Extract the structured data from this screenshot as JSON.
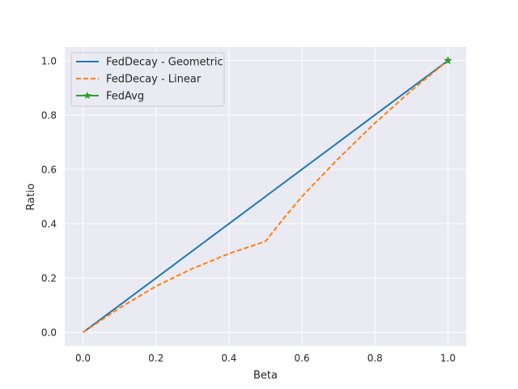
{
  "chart_data": {
    "type": "line",
    "title": "",
    "xlabel": "Beta",
    "ylabel": "Ratio",
    "xlim": [
      -0.05,
      1.05
    ],
    "ylim": [
      -0.05,
      1.05
    ],
    "xticks": [
      0.0,
      0.2,
      0.4,
      0.6,
      0.8,
      1.0
    ],
    "yticks": [
      0.0,
      0.2,
      0.4,
      0.6,
      0.8,
      1.0
    ],
    "xtick_labels": [
      "0.0",
      "0.2",
      "0.4",
      "0.6",
      "0.8",
      "1.0"
    ],
    "ytick_labels": [
      "0.0",
      "0.2",
      "0.4",
      "0.6",
      "0.8",
      "1.0"
    ],
    "grid": true,
    "background": "#eaeaf2",
    "legend_position": "top-left",
    "series": [
      {
        "name": "FedDecay - Geometric",
        "color": "#1f77b4",
        "style": "solid",
        "marker": "none",
        "x": [
          0.0,
          0.1,
          0.2,
          0.3,
          0.4,
          0.5,
          0.6,
          0.7,
          0.8,
          0.9,
          1.0
        ],
        "y": [
          0.0,
          0.1,
          0.2,
          0.3,
          0.4,
          0.5,
          0.6,
          0.7,
          0.8,
          0.9,
          1.0
        ]
      },
      {
        "name": "FedDecay - Linear",
        "color": "#ff7f0e",
        "style": "dashed",
        "marker": "none",
        "x": [
          0.0,
          0.1,
          0.2,
          0.3,
          0.4,
          0.5,
          0.55,
          0.6,
          0.7,
          0.8,
          0.9,
          1.0
        ],
        "y": [
          0.0,
          0.09,
          0.17,
          0.235,
          0.29,
          0.335,
          0.42,
          0.5,
          0.64,
          0.77,
          0.89,
          1.0
        ]
      },
      {
        "name": "FedAvg",
        "color": "#2ca02c",
        "style": "solid",
        "marker": "star",
        "x": [
          1.0
        ],
        "y": [
          1.0
        ]
      }
    ]
  }
}
